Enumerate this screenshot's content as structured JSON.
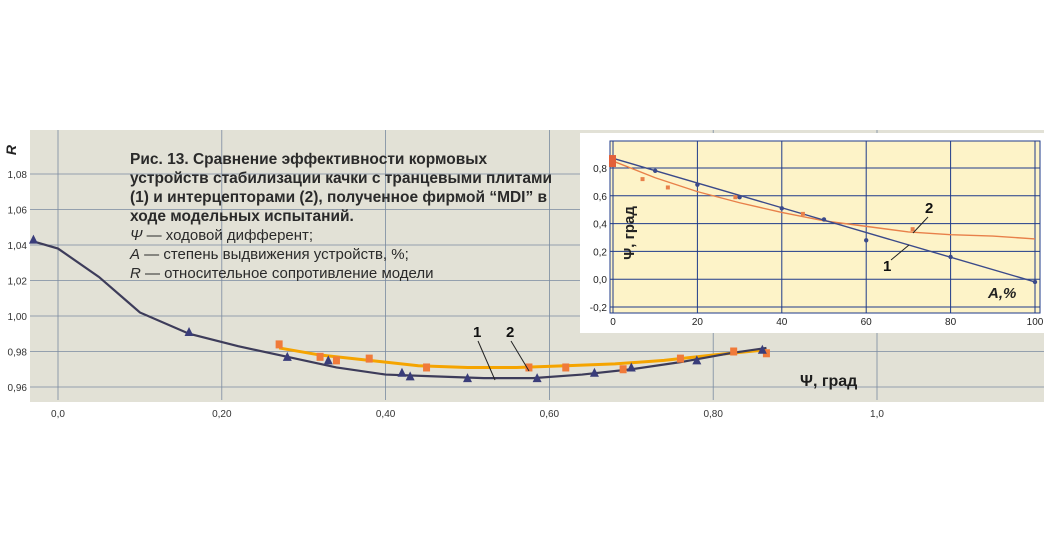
{
  "figure": {
    "title": "Рис. 13. Сравнение эффективности кормовых устройств стабилизации качки с транцевыми плитами (1) и интерцепторами (2), полученное фирмой “MDI” в ходе модельных испытаний.",
    "legend_lines": [
      {
        "symbol": "Ψ",
        "text": " — ходовой дифферент;"
      },
      {
        "symbol": "A",
        "text": " — степень выдвижения устройств, %;"
      },
      {
        "symbol": "R",
        "text": " — относительное сопротивление модели"
      }
    ]
  },
  "colors": {
    "main_bg": "#e2e1d6",
    "inset_bg": "#fdf3c8",
    "grid": "#7a8aa0",
    "series1": "#3d3c5a",
    "series2": "#f5a400",
    "marker1": "#3a3d7a",
    "marker2": "#f07a3a",
    "inset_series1": "#3b4a8a",
    "inset_series2": "#e8804a"
  },
  "chart_data": [
    {
      "type": "line",
      "ylabel": "R",
      "xlabel": "Ψ, град",
      "x_ticks": [
        "0,0",
        "0,20",
        "0,40",
        "0,60",
        "0,80",
        "1,0"
      ],
      "x_tick_values": [
        0,
        0.2,
        0.4,
        0.6,
        0.8,
        1.0
      ],
      "y_ticks": [
        "0,96",
        "0,98",
        "1,00",
        "1,02",
        "1,04",
        "1,06",
        "1,08"
      ],
      "y_tick_values": [
        0.96,
        0.98,
        1.0,
        1.02,
        1.04,
        1.06,
        1.08
      ],
      "xlim": [
        -0.03,
        1.2
      ],
      "ylim": [
        0.955,
        1.09
      ],
      "series": [
        {
          "name": "1",
          "x": [
            -0.03,
            0.0,
            0.05,
            0.1,
            0.16,
            0.22,
            0.28,
            0.34,
            0.4,
            0.46,
            0.52,
            0.58,
            0.64,
            0.7,
            0.76,
            0.82,
            0.865
          ],
          "y": [
            1.042,
            1.038,
            1.022,
            1.002,
            0.99,
            0.983,
            0.977,
            0.971,
            0.967,
            0.966,
            0.965,
            0.965,
            0.967,
            0.97,
            0.974,
            0.979,
            0.982
          ],
          "markers_x": [
            -0.03,
            0.16,
            0.28,
            0.33,
            0.42,
            0.43,
            0.5,
            0.585,
            0.655,
            0.7,
            0.78,
            0.86
          ],
          "markers_y": [
            1.043,
            0.991,
            0.977,
            0.975,
            0.968,
            0.966,
            0.965,
            0.965,
            0.968,
            0.971,
            0.975,
            0.981
          ]
        },
        {
          "name": "2",
          "x": [
            0.27,
            0.32,
            0.38,
            0.44,
            0.5,
            0.56,
            0.62,
            0.68,
            0.74,
            0.8,
            0.865
          ],
          "y": [
            0.982,
            0.978,
            0.975,
            0.972,
            0.971,
            0.971,
            0.972,
            0.973,
            0.975,
            0.978,
            0.981
          ],
          "markers_x": [
            0.27,
            0.32,
            0.34,
            0.38,
            0.45,
            0.575,
            0.62,
            0.69,
            0.76,
            0.825,
            0.865
          ],
          "markers_y": [
            0.984,
            0.977,
            0.975,
            0.976,
            0.971,
            0.971,
            0.971,
            0.97,
            0.976,
            0.98,
            0.979
          ]
        }
      ]
    },
    {
      "type": "line",
      "ylabel": "Ψ, град",
      "xlabel": "A,%",
      "x_ticks": [
        "0",
        "20",
        "40",
        "60",
        "80",
        "100"
      ],
      "x_tick_values": [
        0,
        20,
        40,
        60,
        80,
        100
      ],
      "y_ticks": [
        "-0,2",
        "0,0",
        "0,2",
        "0,4",
        "0,6",
        "0,8"
      ],
      "y_tick_values": [
        -0.2,
        0.0,
        0.2,
        0.4,
        0.6,
        0.8
      ],
      "xlim": [
        0,
        100
      ],
      "ylim": [
        -0.25,
        0.9
      ],
      "series": [
        {
          "name": "1",
          "x": [
            0,
            100
          ],
          "y": [
            0.87,
            -0.02
          ],
          "markers_x": [
            0,
            10,
            20,
            30,
            40,
            50,
            60,
            80,
            100
          ],
          "markers_y": [
            0.86,
            0.78,
            0.68,
            0.59,
            0.51,
            0.43,
            0.28,
            0.16,
            -0.02
          ]
        },
        {
          "name": "2",
          "x": [
            0,
            10,
            20,
            30,
            40,
            50,
            60,
            70,
            80,
            90,
            100
          ],
          "y": [
            0.85,
            0.73,
            0.63,
            0.55,
            0.48,
            0.42,
            0.38,
            0.34,
            0.32,
            0.31,
            0.29
          ],
          "markers_x": [
            0,
            7,
            13,
            29,
            45,
            71
          ],
          "markers_y": [
            0.84,
            0.72,
            0.66,
            0.59,
            0.47,
            0.36
          ]
        }
      ]
    }
  ]
}
